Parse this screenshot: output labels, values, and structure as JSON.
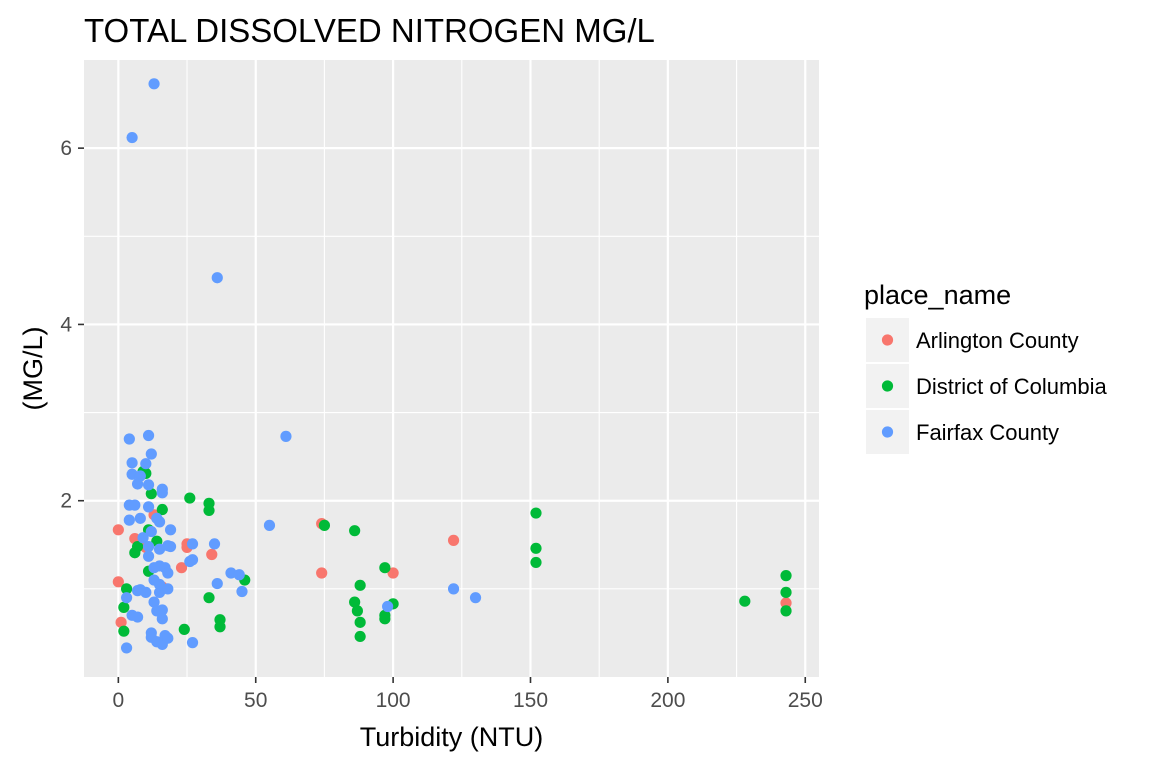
{
  "chart_data": {
    "type": "scatter",
    "title": "TOTAL DISSOLVED NITROGEN MG/L",
    "xlabel": "Turbidity (NTU)",
    "ylabel": "(MG/L)",
    "xlim": [
      -12.5,
      255
    ],
    "ylim": [
      0,
      7.0
    ],
    "x_ticks": [
      0,
      50,
      100,
      150,
      200,
      250
    ],
    "x_tick_labels": [
      "0",
      "50",
      "100",
      "150",
      "200",
      "250"
    ],
    "y_ticks": [
      2,
      4,
      6
    ],
    "y_tick_labels": [
      "2",
      "4",
      "6"
    ],
    "grid": true,
    "legend": {
      "title": "place_name",
      "position": "right"
    },
    "series": [
      {
        "name": "Arlington County",
        "color": "#F8766D",
        "points": [
          [
            0,
            1.67
          ],
          [
            0,
            1.08
          ],
          [
            1,
            0.62
          ],
          [
            6,
            1.57
          ],
          [
            10,
            1.47
          ],
          [
            13,
            1.84
          ],
          [
            16,
            1.02
          ],
          [
            23,
            1.24
          ],
          [
            25,
            1.47
          ],
          [
            25,
            1.51
          ],
          [
            34,
            1.39
          ],
          [
            74,
            1.74
          ],
          [
            74,
            1.18
          ],
          [
            100,
            1.18
          ],
          [
            122,
            1.55
          ],
          [
            243,
            0.84
          ]
        ]
      },
      {
        "name": "District of Columbia",
        "color": "#00BA38",
        "points": [
          [
            2,
            0.79
          ],
          [
            2,
            0.52
          ],
          [
            3,
            1.0
          ],
          [
            6,
            1.41
          ],
          [
            7,
            1.48
          ],
          [
            9,
            2.33
          ],
          [
            10,
            2.31
          ],
          [
            11,
            1.67
          ],
          [
            11,
            1.2
          ],
          [
            12,
            2.08
          ],
          [
            14,
            1.54
          ],
          [
            16,
            1.9
          ],
          [
            24,
            0.54
          ],
          [
            26,
            2.03
          ],
          [
            33,
            1.97
          ],
          [
            33,
            1.89
          ],
          [
            33,
            0.9
          ],
          [
            37,
            0.65
          ],
          [
            37,
            0.57
          ],
          [
            46,
            1.1
          ],
          [
            75,
            1.72
          ],
          [
            86,
            1.66
          ],
          [
            86,
            0.85
          ],
          [
            87,
            0.75
          ],
          [
            88,
            1.04
          ],
          [
            88,
            0.62
          ],
          [
            88,
            0.46
          ],
          [
            97,
            1.24
          ],
          [
            97,
            0.7
          ],
          [
            97,
            0.66
          ],
          [
            100,
            0.83
          ],
          [
            152,
            1.86
          ],
          [
            152,
            1.46
          ],
          [
            152,
            1.3
          ],
          [
            228,
            0.86
          ],
          [
            243,
            1.15
          ],
          [
            243,
            0.96
          ],
          [
            243,
            0.75
          ]
        ]
      },
      {
        "name": "Fairfax County",
        "color": "#619CFF",
        "points": [
          [
            13,
            6.73
          ],
          [
            5,
            6.12
          ],
          [
            36,
            4.53
          ],
          [
            61,
            2.73
          ],
          [
            11,
            2.74
          ],
          [
            4,
            2.7
          ],
          [
            12,
            2.53
          ],
          [
            5,
            2.43
          ],
          [
            10,
            2.42
          ],
          [
            5,
            2.3
          ],
          [
            8,
            2.28
          ],
          [
            7,
            2.19
          ],
          [
            11,
            2.18
          ],
          [
            16,
            2.13
          ],
          [
            16,
            2.09
          ],
          [
            4,
            1.95
          ],
          [
            6,
            1.95
          ],
          [
            11,
            1.93
          ],
          [
            4,
            1.78
          ],
          [
            8,
            1.8
          ],
          [
            14,
            1.8
          ],
          [
            15,
            1.76
          ],
          [
            19,
            1.67
          ],
          [
            12,
            1.65
          ],
          [
            55,
            1.72
          ],
          [
            9,
            1.58
          ],
          [
            11,
            1.48
          ],
          [
            15,
            1.45
          ],
          [
            18,
            1.49
          ],
          [
            19,
            1.48
          ],
          [
            27,
            1.51
          ],
          [
            35,
            1.51
          ],
          [
            11,
            1.37
          ],
          [
            13,
            1.24
          ],
          [
            15,
            1.26
          ],
          [
            17,
            1.24
          ],
          [
            18,
            1.18
          ],
          [
            26,
            1.31
          ],
          [
            27,
            1.33
          ],
          [
            41,
            1.18
          ],
          [
            44,
            1.16
          ],
          [
            13,
            1.1
          ],
          [
            15,
            1.05
          ],
          [
            36,
            1.06
          ],
          [
            7,
            0.98
          ],
          [
            8,
            0.99
          ],
          [
            10,
            0.96
          ],
          [
            15,
            0.96
          ],
          [
            18,
            1.0
          ],
          [
            45,
            0.97
          ],
          [
            122,
            1.0
          ],
          [
            130,
            0.9
          ],
          [
            3,
            0.9
          ],
          [
            13,
            0.85
          ],
          [
            5,
            0.7
          ],
          [
            7,
            0.68
          ],
          [
            14,
            0.75
          ],
          [
            16,
            0.76
          ],
          [
            16,
            0.66
          ],
          [
            98,
            0.8
          ],
          [
            12,
            0.5
          ],
          [
            12,
            0.45
          ],
          [
            14,
            0.4
          ],
          [
            16,
            0.37
          ],
          [
            17,
            0.47
          ],
          [
            18,
            0.44
          ],
          [
            27,
            0.39
          ],
          [
            3,
            0.33
          ]
        ]
      }
    ]
  }
}
